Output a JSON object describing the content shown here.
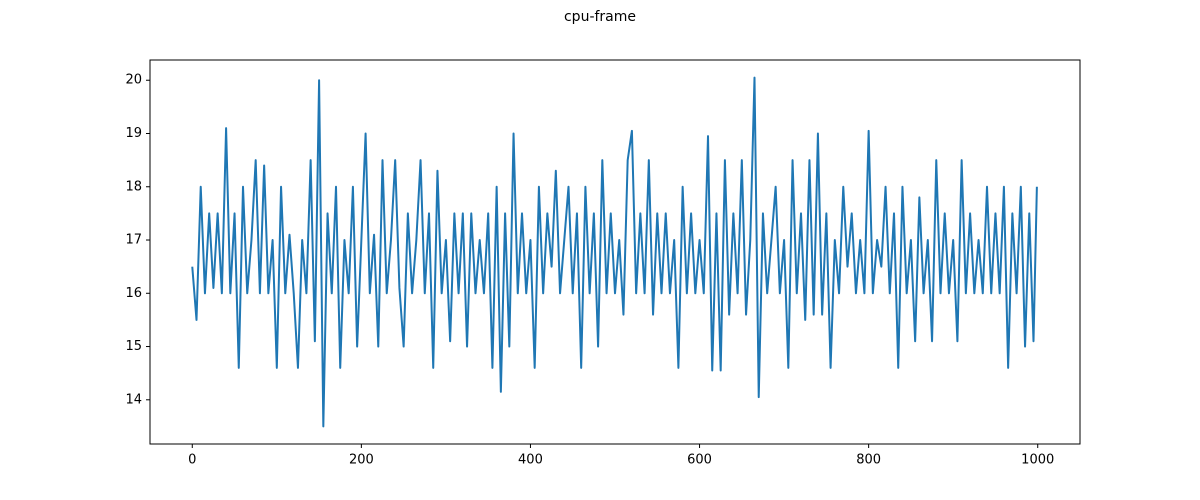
{
  "chart_data": {
    "type": "line",
    "title": "cpu-frame",
    "x": [
      0,
      5,
      10,
      15,
      20,
      25,
      30,
      35,
      40,
      45,
      50,
      55,
      60,
      65,
      70,
      75,
      80,
      85,
      90,
      95,
      100,
      105,
      110,
      115,
      120,
      125,
      130,
      135,
      140,
      145,
      150,
      155,
      160,
      165,
      170,
      175,
      180,
      185,
      190,
      195,
      200,
      205,
      210,
      215,
      220,
      225,
      230,
      235,
      240,
      245,
      250,
      255,
      260,
      265,
      270,
      275,
      280,
      285,
      290,
      295,
      300,
      305,
      310,
      315,
      320,
      325,
      330,
      335,
      340,
      345,
      350,
      355,
      360,
      365,
      370,
      375,
      380,
      385,
      390,
      395,
      400,
      405,
      410,
      415,
      420,
      425,
      430,
      435,
      440,
      445,
      450,
      455,
      460,
      465,
      470,
      475,
      480,
      485,
      490,
      495,
      500,
      505,
      510,
      515,
      520,
      525,
      530,
      535,
      540,
      545,
      550,
      555,
      560,
      565,
      570,
      575,
      580,
      585,
      590,
      595,
      600,
      605,
      610,
      615,
      620,
      625,
      630,
      635,
      640,
      645,
      650,
      655,
      660,
      665,
      670,
      675,
      680,
      685,
      690,
      695,
      700,
      705,
      710,
      715,
      720,
      725,
      730,
      735,
      740,
      745,
      750,
      755,
      760,
      765,
      770,
      775,
      780,
      785,
      790,
      795,
      800,
      805,
      810,
      815,
      820,
      825,
      830,
      835,
      840,
      845,
      850,
      855,
      860,
      865,
      870,
      875,
      880,
      885,
      890,
      895,
      900,
      905,
      910,
      915,
      920,
      925,
      930,
      935,
      940,
      945,
      950,
      955,
      960,
      965,
      970,
      975,
      980,
      985,
      990,
      995,
      999
    ],
    "series": [
      {
        "name": "cpu-frame",
        "color": "#1f77b4",
        "values": [
          16.5,
          15.5,
          18,
          16,
          17.5,
          16.1,
          17.5,
          16,
          19.1,
          16,
          17.5,
          14.6,
          18,
          16,
          17,
          18.5,
          16,
          18.4,
          16,
          17,
          14.6,
          18,
          16,
          17.1,
          16,
          14.6,
          17,
          16,
          18.5,
          15.1,
          20,
          13.5,
          17.5,
          16,
          18,
          14.6,
          17,
          16,
          18,
          15,
          17,
          19,
          16,
          17.1,
          15,
          18.5,
          16,
          17,
          18.5,
          16.1,
          15,
          17.5,
          16,
          17,
          18.5,
          16,
          17.5,
          14.6,
          18.3,
          16,
          17,
          15.1,
          17.5,
          16,
          17.5,
          15,
          17.5,
          16,
          17,
          16,
          17.5,
          14.6,
          18,
          14.15,
          17.5,
          15,
          19,
          16,
          17.5,
          16,
          17,
          14.6,
          18,
          16,
          17.5,
          16.5,
          18.3,
          16,
          17,
          18,
          16,
          17.5,
          14.6,
          18,
          16,
          17.5,
          15,
          18.5,
          16,
          17.5,
          16,
          17,
          15.6,
          18.5,
          19.05,
          16,
          17.5,
          16,
          18.5,
          15.6,
          17.5,
          16,
          17.5,
          16,
          17,
          14.6,
          18,
          16,
          17.5,
          16,
          17,
          16,
          18.95,
          14.55,
          17.5,
          14.55,
          18.5,
          15.6,
          17.5,
          16,
          18.5,
          15.6,
          17,
          20.05,
          14.05,
          17.5,
          16,
          17,
          18,
          16,
          17,
          14.6,
          18.5,
          16,
          17.5,
          15.5,
          18.5,
          15.6,
          19,
          15.6,
          17.5,
          14.6,
          17,
          16,
          18,
          16.5,
          17.5,
          16,
          17,
          16,
          19.05,
          16,
          17,
          16.5,
          18,
          16,
          17.5,
          14.6,
          18,
          16,
          17,
          15.1,
          17.8,
          16,
          17,
          15.1,
          18.5,
          16,
          17.5,
          16,
          17,
          15.1,
          18.5,
          16,
          17.5,
          16,
          17,
          16,
          18,
          16,
          17.5,
          16,
          18,
          14.6,
          17.5,
          16,
          18,
          15,
          17.5,
          15.1,
          18
        ]
      }
    ],
    "xlim": [
      -50,
      1050
    ],
    "xticks": [
      0,
      200,
      400,
      600,
      800,
      1000
    ],
    "ylim": [
      13.17,
      20.38
    ],
    "yticks": [
      14,
      15,
      16,
      17,
      18,
      19,
      20
    ],
    "grid": false
  }
}
